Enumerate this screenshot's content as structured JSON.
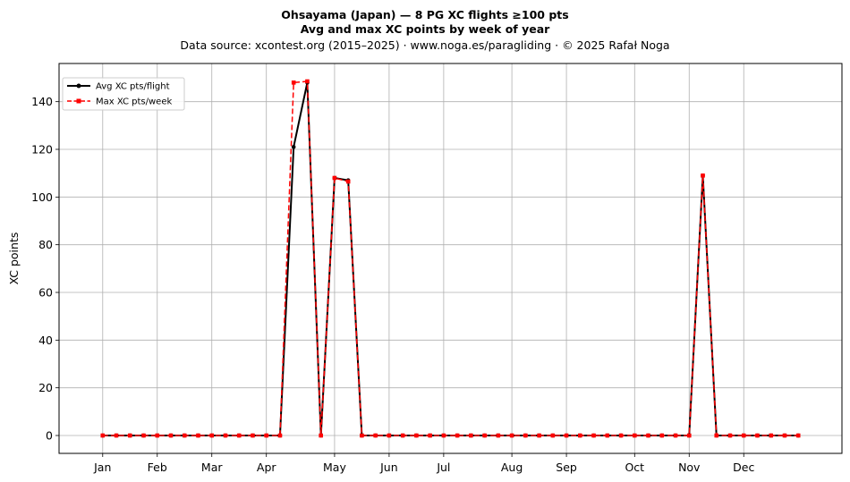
{
  "chart_data": {
    "type": "line",
    "title": "Ohsayama (Japan)  —  8 PG XC flights ≥100 pts",
    "subtitle": "Avg and max XC points by week of year",
    "source_line": "Data source: xcontest.org (2015–2025)  ·  www.noga.es/paragliding  ·  © 2025 Rafał Noga",
    "xlabel": "",
    "ylabel": "XC points",
    "ylim": [
      -7.5,
      156
    ],
    "yticks": [
      0,
      20,
      40,
      60,
      80,
      100,
      120,
      140
    ],
    "x_tick_weeks": [
      1,
      5,
      9,
      13,
      18,
      22,
      26,
      31,
      35,
      40,
      44,
      48
    ],
    "x_tick_labels": [
      "Jan",
      "Feb",
      "Mar",
      "Apr",
      "May",
      "Jun",
      "Jul",
      "Aug",
      "Sep",
      "Oct",
      "Nov",
      "Dec"
    ],
    "grid": true,
    "legend_position": "top-left",
    "series": [
      {
        "name": "Avg XC pts/flight",
        "color": "#000000",
        "style": "solid",
        "marker": "circle",
        "x": [
          1,
          2,
          3,
          4,
          5,
          6,
          7,
          8,
          9,
          10,
          11,
          12,
          13,
          14,
          15,
          16,
          17,
          18,
          19,
          20,
          21,
          22,
          23,
          24,
          25,
          26,
          27,
          28,
          29,
          30,
          31,
          32,
          33,
          34,
          35,
          36,
          37,
          38,
          39,
          40,
          41,
          42,
          43,
          44,
          45,
          46,
          47,
          48,
          49,
          50,
          51,
          52
        ],
        "values": [
          0,
          0,
          0,
          0,
          0,
          0,
          0,
          0,
          0,
          0,
          0,
          0,
          0,
          0,
          121,
          148,
          0,
          108,
          107,
          0,
          0,
          0,
          0,
          0,
          0,
          0,
          0,
          0,
          0,
          0,
          0,
          0,
          0,
          0,
          0,
          0,
          0,
          0,
          0,
          0,
          0,
          0,
          0,
          0,
          109,
          0,
          0,
          0,
          0,
          0,
          0,
          0
        ]
      },
      {
        "name": "Max XC pts/week",
        "color": "#ff0000",
        "style": "dashed",
        "marker": "square",
        "x": [
          1,
          2,
          3,
          4,
          5,
          6,
          7,
          8,
          9,
          10,
          11,
          12,
          13,
          14,
          15,
          16,
          17,
          18,
          19,
          20,
          21,
          22,
          23,
          24,
          25,
          26,
          27,
          28,
          29,
          30,
          31,
          32,
          33,
          34,
          35,
          36,
          37,
          38,
          39,
          40,
          41,
          42,
          43,
          44,
          45,
          46,
          47,
          48,
          49,
          50,
          51,
          52
        ],
        "values": [
          0,
          0,
          0,
          0,
          0,
          0,
          0,
          0,
          0,
          0,
          0,
          0,
          0,
          0,
          148,
          148.5,
          0,
          108,
          106.5,
          0,
          0,
          0,
          0,
          0,
          0,
          0,
          0,
          0,
          0,
          0,
          0,
          0,
          0,
          0,
          0,
          0,
          0,
          0,
          0,
          0,
          0,
          0,
          0,
          0,
          109,
          0,
          0,
          0,
          0,
          0,
          0,
          0
        ]
      }
    ]
  }
}
